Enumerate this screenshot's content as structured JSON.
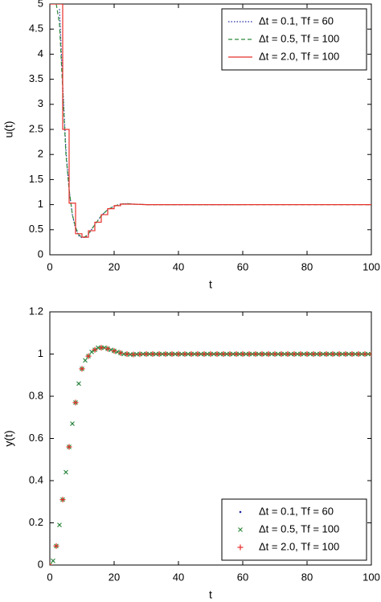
{
  "chart_data": [
    {
      "type": "line",
      "xlabel": "t",
      "ylabel": "u(t)",
      "xlim": [
        0,
        100
      ],
      "ylim": [
        0,
        5
      ],
      "xticks": [
        0,
        20,
        40,
        60,
        80,
        100
      ],
      "yticks": [
        0,
        0.5,
        1,
        1.5,
        2,
        2.5,
        3,
        3.5,
        4,
        4.5,
        5
      ],
      "legend": "upper right",
      "series": [
        {
          "name": "Δt = 0.1, Tf = 60",
          "color": "#1f2a9c",
          "style": "dotted",
          "x": [
            3,
            4,
            5,
            6,
            7,
            8,
            9,
            10,
            11,
            12,
            14,
            16,
            18,
            20,
            22,
            24,
            26,
            30,
            60
          ],
          "values": [
            4.9,
            3.4,
            2.1,
            1.3,
            0.8,
            0.52,
            0.38,
            0.34,
            0.35,
            0.41,
            0.6,
            0.78,
            0.9,
            0.97,
            1.01,
            1.02,
            1.01,
            1.0,
            1.0
          ]
        },
        {
          "name": "Δt = 0.5, Tf = 100",
          "color": "#2e8b3e",
          "style": "dashed",
          "x": [
            2,
            3,
            4,
            5,
            6,
            7,
            8,
            9,
            10,
            11,
            12,
            14,
            16,
            18,
            20,
            22,
            24,
            26,
            30,
            100
          ],
          "values": [
            5,
            4.6,
            3.3,
            2.0,
            1.3,
            0.8,
            0.55,
            0.4,
            0.35,
            0.36,
            0.42,
            0.6,
            0.78,
            0.9,
            0.97,
            1.01,
            1.02,
            1.01,
            1.0,
            1.0
          ]
        },
        {
          "name": "Δt = 2.0, Tf = 100",
          "color": "#e8302a",
          "style": "solid",
          "x": [
            0,
            4,
            4,
            6,
            6,
            8,
            8,
            10,
            10,
            12,
            12,
            14,
            14,
            16,
            16,
            18,
            18,
            20,
            20,
            22,
            22,
            26,
            30,
            100
          ],
          "values": [
            5,
            5,
            2.5,
            2.5,
            1.03,
            1.03,
            0.42,
            0.42,
            0.35,
            0.35,
            0.48,
            0.48,
            0.65,
            0.65,
            0.8,
            0.8,
            0.92,
            0.92,
            0.98,
            0.98,
            1.01,
            1.01,
            1.0,
            1.0
          ]
        }
      ]
    },
    {
      "type": "scatter",
      "xlabel": "t",
      "ylabel": "y(t)",
      "xlim": [
        0,
        100
      ],
      "ylim": [
        0,
        1.2
      ],
      "xticks": [
        0,
        20,
        40,
        60,
        80,
        100
      ],
      "yticks": [
        0,
        0.2,
        0.4,
        0.6,
        0.8,
        1,
        1.2
      ],
      "legend": "lower right",
      "series": [
        {
          "name": "Δt = 0.1, Tf = 60",
          "color": "#1f2a9c",
          "marker": "dot",
          "x": [
            0,
            1,
            2,
            3,
            4,
            5,
            6,
            7,
            8,
            9,
            10,
            11,
            12,
            13,
            14,
            15,
            16,
            17,
            18,
            19,
            20,
            21,
            22,
            23,
            24,
            25,
            26,
            27,
            28,
            29,
            30,
            31,
            32,
            33,
            34,
            35,
            36,
            37,
            38,
            39,
            40,
            41,
            42,
            43,
            44,
            45,
            46,
            47,
            48,
            49,
            50,
            51,
            52,
            53,
            54,
            55,
            56,
            57,
            58,
            59,
            60
          ],
          "values": [
            0,
            0.02,
            0.09,
            0.19,
            0.31,
            0.44,
            0.56,
            0.67,
            0.77,
            0.86,
            0.93,
            0.97,
            0.99,
            1.01,
            1.02,
            1.03,
            1.03,
            1.03,
            1.025,
            1.02,
            1.015,
            1.01,
            1.005,
            1,
            1,
            0.998,
            0.998,
            0.999,
            1,
            1,
            1,
            1,
            1,
            1,
            1,
            1,
            1,
            1,
            1,
            1,
            1,
            1,
            1,
            1,
            1,
            1,
            1,
            1,
            1,
            1,
            1,
            1,
            1,
            1,
            1,
            1,
            1,
            1,
            1,
            1,
            1
          ]
        },
        {
          "name": "Δt = 0.5, Tf = 100",
          "color": "#2e8b3e",
          "marker": "x",
          "x": [
            0,
            1,
            2,
            3,
            4,
            5,
            6,
            7,
            8,
            9,
            10,
            11,
            12,
            13,
            14,
            15,
            16,
            17,
            18,
            19,
            20,
            21,
            22,
            23,
            24,
            25,
            26,
            27,
            28,
            29,
            30,
            31,
            32,
            33,
            34,
            35,
            36,
            37,
            38,
            39,
            40,
            41,
            42,
            43,
            44,
            45,
            46,
            47,
            48,
            49,
            50,
            51,
            52,
            53,
            54,
            55,
            56,
            57,
            58,
            59,
            60,
            61,
            62,
            63,
            64,
            65,
            66,
            67,
            68,
            69,
            70,
            71,
            72,
            73,
            74,
            75,
            76,
            77,
            78,
            79,
            80,
            81,
            82,
            83,
            84,
            85,
            86,
            87,
            88,
            89,
            90,
            91,
            92,
            93,
            94,
            95,
            96,
            97,
            98,
            99,
            100
          ],
          "values": [
            0,
            0.02,
            0.09,
            0.19,
            0.31,
            0.44,
            0.56,
            0.67,
            0.77,
            0.86,
            0.93,
            0.97,
            0.99,
            1.01,
            1.02,
            1.03,
            1.03,
            1.03,
            1.025,
            1.02,
            1.015,
            1.01,
            1.005,
            1,
            1,
            0.998,
            0.998,
            0.999,
            1,
            1,
            1,
            1,
            1,
            1,
            1,
            1,
            1,
            1,
            1,
            1,
            1,
            1,
            1,
            1,
            1,
            1,
            1,
            1,
            1,
            1,
            1,
            1,
            1,
            1,
            1,
            1,
            1,
            1,
            1,
            1,
            1,
            1,
            1,
            1,
            1,
            1,
            1,
            1,
            1,
            1,
            1,
            1,
            1,
            1,
            1,
            1,
            1,
            1,
            1,
            1,
            1,
            1,
            1,
            1,
            1,
            1,
            1,
            1,
            1,
            1,
            1,
            1,
            1,
            1,
            1,
            1,
            1,
            1,
            1,
            1,
            1
          ]
        },
        {
          "name": "Δt = 2.0, Tf = 100",
          "color": "#e8302a",
          "marker": "plus",
          "x": [
            0,
            2,
            4,
            6,
            8,
            10,
            12,
            14,
            16,
            18,
            20,
            22,
            24,
            26,
            28,
            30,
            32,
            34,
            36,
            38,
            40,
            42,
            44,
            46,
            48,
            50,
            52,
            54,
            56,
            58,
            60,
            62,
            64,
            66,
            68,
            70,
            72,
            74,
            76,
            78,
            80,
            82,
            84,
            86,
            88,
            90,
            92,
            94,
            96,
            98,
            100
          ],
          "values": [
            0,
            0.09,
            0.31,
            0.56,
            0.77,
            0.93,
            0.99,
            1.02,
            1.03,
            1.025,
            1.015,
            1.005,
            1,
            0.998,
            0.999,
            1,
            1,
            1,
            1,
            1,
            1,
            1,
            1,
            1,
            1,
            1,
            1,
            1,
            1,
            1,
            1,
            1,
            1,
            1,
            1,
            1,
            1,
            1,
            1,
            1,
            1,
            1,
            1,
            1,
            1,
            1,
            1,
            1,
            1,
            1,
            1
          ]
        }
      ]
    }
  ]
}
